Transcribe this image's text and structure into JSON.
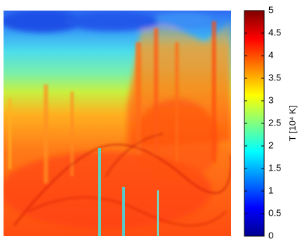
{
  "chart_data": {
    "type": "heatmap",
    "colorbar_label": "T [10⁴ K]",
    "colormap": "jet",
    "ylim": [
      0,
      5
    ],
    "yticks": [
      0,
      0.5,
      1,
      1.5,
      2,
      2.5,
      3,
      3.5,
      4,
      4.5,
      5
    ]
  }
}
